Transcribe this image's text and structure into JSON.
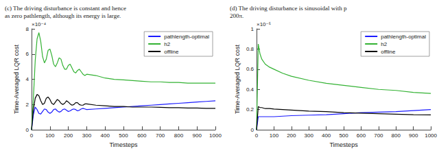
{
  "chart_data": [
    {
      "type": "line",
      "title": "(c) The driving disturbance is constant and hence\nas zero pathlength, although its energy is large.",
      "annotations": [
        "×10⁻⁴"
      ],
      "xlabel": "Timesteps",
      "ylabel": "Time-Averaged LQR cost",
      "x": [
        0,
        10,
        20,
        30,
        40,
        50,
        60,
        70,
        80,
        90,
        100,
        110,
        120,
        130,
        140,
        150,
        160,
        170,
        180,
        190,
        200,
        210,
        220,
        230,
        240,
        250,
        260,
        270,
        280,
        290,
        300,
        350,
        400,
        450,
        500,
        550,
        600,
        650,
        700,
        750,
        800,
        850,
        900,
        950,
        1000
      ],
      "series": [
        {
          "name": "pathlength-optimal",
          "color": "#1a1aff",
          "values": [
            0,
            1.2,
            1.8,
            1.6,
            1.3,
            1.25,
            1.45,
            1.65,
            1.6,
            1.4,
            1.3,
            1.4,
            1.6,
            1.65,
            1.5,
            1.4,
            1.45,
            1.6,
            1.65,
            1.55,
            1.45,
            1.5,
            1.6,
            1.65,
            1.6,
            1.5,
            1.55,
            1.65,
            1.7,
            1.65,
            1.6,
            1.65,
            1.7,
            1.75,
            1.8,
            1.85,
            1.9,
            1.95,
            2.0,
            2.05,
            2.1,
            2.15,
            2.2,
            2.25,
            2.3
          ]
        },
        {
          "name": "h2",
          "color": "#33b233",
          "values": [
            0,
            2.5,
            5.5,
            7.2,
            7.7,
            7.0,
            5.8,
            5.3,
            5.6,
            6.3,
            6.4,
            5.9,
            5.2,
            5.0,
            5.3,
            5.7,
            5.6,
            5.1,
            4.8,
            4.8,
            5.1,
            5.2,
            4.9,
            4.6,
            4.5,
            4.7,
            4.8,
            4.6,
            4.4,
            4.3,
            4.4,
            4.3,
            4.1,
            4.0,
            3.95,
            3.9,
            3.85,
            3.8,
            3.8,
            3.75,
            3.75,
            3.7,
            3.7,
            3.7,
            3.7
          ]
        },
        {
          "name": "offline",
          "color": "#000000",
          "values": [
            0,
            1.6,
            2.5,
            2.8,
            2.7,
            2.3,
            2.0,
            2.1,
            2.5,
            2.6,
            2.4,
            2.1,
            2.0,
            2.2,
            2.4,
            2.3,
            2.1,
            2.0,
            2.1,
            2.3,
            2.2,
            2.05,
            1.95,
            2.0,
            2.15,
            2.15,
            2.0,
            1.95,
            1.95,
            2.05,
            2.05,
            1.95,
            1.9,
            1.85,
            1.85,
            1.8,
            1.8,
            1.8,
            1.78,
            1.75,
            1.75,
            1.73,
            1.72,
            1.7,
            1.7
          ]
        }
      ],
      "xlim": [
        0,
        1000
      ],
      "xticks": [
        0,
        100,
        200,
        300,
        400,
        500,
        600,
        700,
        800,
        900,
        1000
      ],
      "ylim": [
        0,
        8
      ],
      "yticks": [
        0,
        2,
        4,
        6,
        8
      ],
      "legend": "upper right",
      "grid": false
    },
    {
      "type": "line",
      "title": "(d) The driving disturbance is sinusoidal with p\n200π.",
      "annotations": [
        "×10⁻⁵"
      ],
      "xlabel": "Timesteps",
      "ylabel": "Time-Averaged LQR cost",
      "x": [
        0,
        10,
        20,
        30,
        50,
        75,
        100,
        150,
        200,
        300,
        400,
        500,
        600,
        700,
        800,
        900,
        1000
      ],
      "series": [
        {
          "name": "pathlength-optimal",
          "color": "#1a1aff",
          "values": [
            0,
            0.13,
            0.13,
            0.13,
            0.13,
            0.13,
            0.13,
            0.135,
            0.14,
            0.145,
            0.15,
            0.16,
            0.17,
            0.175,
            0.18,
            0.19,
            0.2
          ]
        },
        {
          "name": "h2",
          "color": "#33b233",
          "values": [
            0,
            0.85,
            0.75,
            0.7,
            0.65,
            0.62,
            0.6,
            0.56,
            0.53,
            0.49,
            0.46,
            0.44,
            0.42,
            0.4,
            0.39,
            0.37,
            0.36
          ]
        },
        {
          "name": "offline",
          "color": "#000000",
          "values": [
            0,
            0.23,
            0.22,
            0.22,
            0.21,
            0.21,
            0.205,
            0.2,
            0.195,
            0.185,
            0.18,
            0.17,
            0.165,
            0.16,
            0.155,
            0.15,
            0.148
          ]
        }
      ],
      "xlim": [
        0,
        1000
      ],
      "xticks": [
        0,
        100,
        200,
        300,
        400,
        500,
        600,
        700,
        800,
        900,
        1000
      ],
      "ylim": [
        0,
        1
      ],
      "yticks": [
        0,
        0.2,
        0.4,
        0.6,
        0.8,
        1
      ],
      "legend": "upper right",
      "grid": false
    }
  ]
}
